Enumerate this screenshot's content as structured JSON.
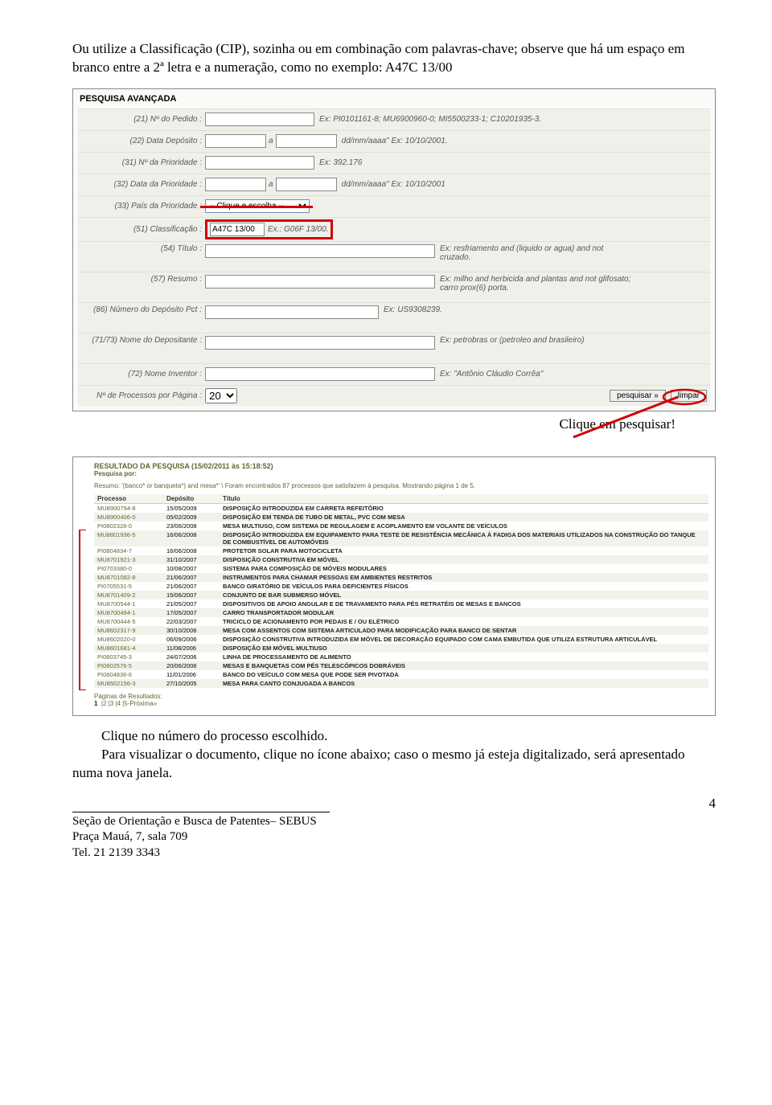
{
  "intro": "Ou utilize a Classificação (CIP), sozinha ou em combinação com palavras-chave; observe que há um espaço em branco entre a 2ª letra e a numeração, como no exemplo: A47C 13/00",
  "form": {
    "title": "PESQUISA AVANÇADA",
    "rows": {
      "pedido_lbl": "(21) Nº do Pedido :",
      "pedido_hint": "Ex: PI0101161-8; MU6900960-0; MI5500233-1; C10201935-3.",
      "deposito_lbl": "(22) Data Depósito :",
      "deposito_sep": "a",
      "deposito_hint": "dd/mm/aaaa\" Ex: 10/10/2001.",
      "prioridade_lbl": "(31) Nº da Prioridade :",
      "prioridade_hint": "Ex: 392.176",
      "dataprio_lbl": "(32) Data da Prioridade :",
      "dataprio_sep": "a",
      "dataprio_hint": "dd/mm/aaaa\" Ex: 10/10/2001",
      "paisprio_lbl": "(33) País da Prioridade :",
      "paisprio_opt": "-- Clique e escolha --",
      "classif_lbl": "(51) Classificação :",
      "classif_val": "A47C 13/00",
      "classif_hint": "Ex.: G06F 13/00.",
      "titulo_lbl": "(54) Título :",
      "titulo_hint": "Ex: resfriamento and (liquido or agua) and not cruzado.",
      "resumo_lbl": "(57) Resumo :",
      "resumo_hint": "Ex: milho and herbicida and plantas and not glifosato; carro prox(6) porta.",
      "pct_lbl": "(86) Número do Depósito Pct :",
      "pct_hint": "Ex: US9308239.",
      "depositante_lbl": "(71/73) Nome do Depositante :",
      "depositante_hint": "Ex: petrobras or (petroleo and brasileiro)",
      "inventor_lbl": "(72) Nome Inventor :",
      "inventor_hint": "Ex: \"Antônio Cláudio Corrêa\"",
      "perpage_lbl": "Nº de Processos por Página :",
      "perpage_val": "20",
      "btn_search": "pesquisar »",
      "btn_clear": "limpar"
    }
  },
  "caption_right": "Clique em pesquisar!",
  "results": {
    "title": "RESULTADO DA PESQUISA (15/02/2011 às 15:18:52)",
    "sub1": "Pesquisa por:",
    "sub2": "Resumo: '(banco* or banqueta*) and mesa*' \\ Foram encontrados 87 processos que satisfazem à pesquisa. Mostrando página 1 de 5.",
    "cols": {
      "c1": "Processo",
      "c2": "Depósito",
      "c3": "Título"
    },
    "rows": [
      {
        "p": "MU8900794-8",
        "d": "15/05/2009",
        "t": "DISPOSIÇÃO INTRODUZIDA EM CARRETA REFEITÓRIO"
      },
      {
        "p": "MU8900406-0",
        "d": "05/02/2009",
        "t": "DISPOSIÇÃO EM TENDA DE TUBO DE METAL, PVC COM MESA"
      },
      {
        "p": "PI0802328-0",
        "d": "23/06/2008",
        "t": "MESA MULTIUSO, COM SISTEMA DE REGULAGEM E ACOPLAMENTO EM VOLANTE DE VEÍCULOS"
      },
      {
        "p": "MU8801936-5",
        "d": "16/06/2008",
        "t": "DISPOSIÇÃO INTRODUZIDA EM EQUIPAMENTO PARA TESTE DE RESISTÊNCIA MECÂNICA À FADIGA DOS MATERIAIS UTILIZADOS NA CONSTRUÇÃO DO TANQUE DE COMBUSTÍVEL DE AUTOMÓVEIS"
      },
      {
        "p": "PI0804834-7",
        "d": "16/06/2008",
        "t": "PROTETOR SOLAR PARA MOTOCICLETA"
      },
      {
        "p": "MU8701921-3",
        "d": "31/10/2007",
        "t": "DISPOSIÇÃO CONSTRUTIVA EM MÓVEL"
      },
      {
        "p": "PI0703380-0",
        "d": "10/08/2007",
        "t": "SISTEMA PARA COMPOSIÇÃO DE MÓVEIS MODULARES"
      },
      {
        "p": "MU8701082-8",
        "d": "21/06/2007",
        "t": "INSTRUMENTOS PARA CHAMAR PESSOAS EM AMBIENTES RESTRITOS"
      },
      {
        "p": "PI0705531-5",
        "d": "21/06/2007",
        "t": "BANCO GIRATÓRIO DE VEÍCULOS PARA DEFICIENTES FÍSICOS"
      },
      {
        "p": "MU8701409-2",
        "d": "15/06/2007",
        "t": "CONJUNTO DE BAR SUBMERSO MÓVEL"
      },
      {
        "p": "MU8700544-1",
        "d": "21/05/2007",
        "t": "DISPOSITIVOS DE APOIO ANGULAR E DE TRAVAMENTO PARA PÉS RETRATÉIS DE MESAS E BANCOS"
      },
      {
        "p": "MU8700494-1",
        "d": "17/05/2007",
        "t": "CARRO TRANSPORTADOR MODULAR"
      },
      {
        "p": "MU8700444-5",
        "d": "22/03/2007",
        "t": "TRICICLO DE ACIONAMENTO POR PEDAIS E / OU ELÉTRICO"
      },
      {
        "p": "MU8602317-9",
        "d": "30/10/2006",
        "t": "MESA COM ASSENTOS COM SISTEMA ARTICULADO PARA MODIFICAÇÃO PARA BANCO DE SENTAR"
      },
      {
        "p": "MU8602020-0",
        "d": "06/09/2006",
        "t": "DISPOSIÇÃO CONSTRUTIVA INTRODUZIDA EM MÓVEL DE DECORAÇÃO EQUIPADO COM CAMA EMBUTIDA QUE UTILIZA ESTRUTURA ARTICULÁVEL"
      },
      {
        "p": "MU8601681-4",
        "d": "11/08/2006",
        "t": "DISPOSIÇÃO EM MÓVEL MULTIUSO"
      },
      {
        "p": "PI0603745-3",
        "d": "24/07/2006",
        "t": "LINHA DE PROCESSAMENTO DE ALIMENTO"
      },
      {
        "p": "PI0602576-5",
        "d": "20/06/2006",
        "t": "MESAS E BANQUETAS COM PÉS TELESCÓPICOS DOBRÁVEIS"
      },
      {
        "p": "PI0604836-6",
        "d": "11/01/2006",
        "t": "BANCO DO VEÍCULO COM MESA QUE PODE SER PIVOTADA"
      },
      {
        "p": "MU8502156-3",
        "d": "27/10/2005",
        "t": "MESA PARA CANTO CONJUGADA A BANCOS"
      }
    ],
    "pages_lbl": "Páginas de Resultados:",
    "pages": "1  |2 |3 |4 |5-Próxima»"
  },
  "para2_l1": "Clique no número do processo escolhido.",
  "para2_l2": "Para visualizar o documento, clique no ícone abaixo; caso o mesmo já esteja digitalizado, será apresentado numa nova janela.",
  "footer": {
    "l1": "Seção de Orientação e Busca de Patentes– SEBUS",
    "l2": "Praça Mauá, 7, sala 709",
    "l3": "Tel. 21 2139 3343"
  },
  "pagenum": "4",
  "colors": {
    "red": "#d00000",
    "olive": "#5a6a30"
  }
}
